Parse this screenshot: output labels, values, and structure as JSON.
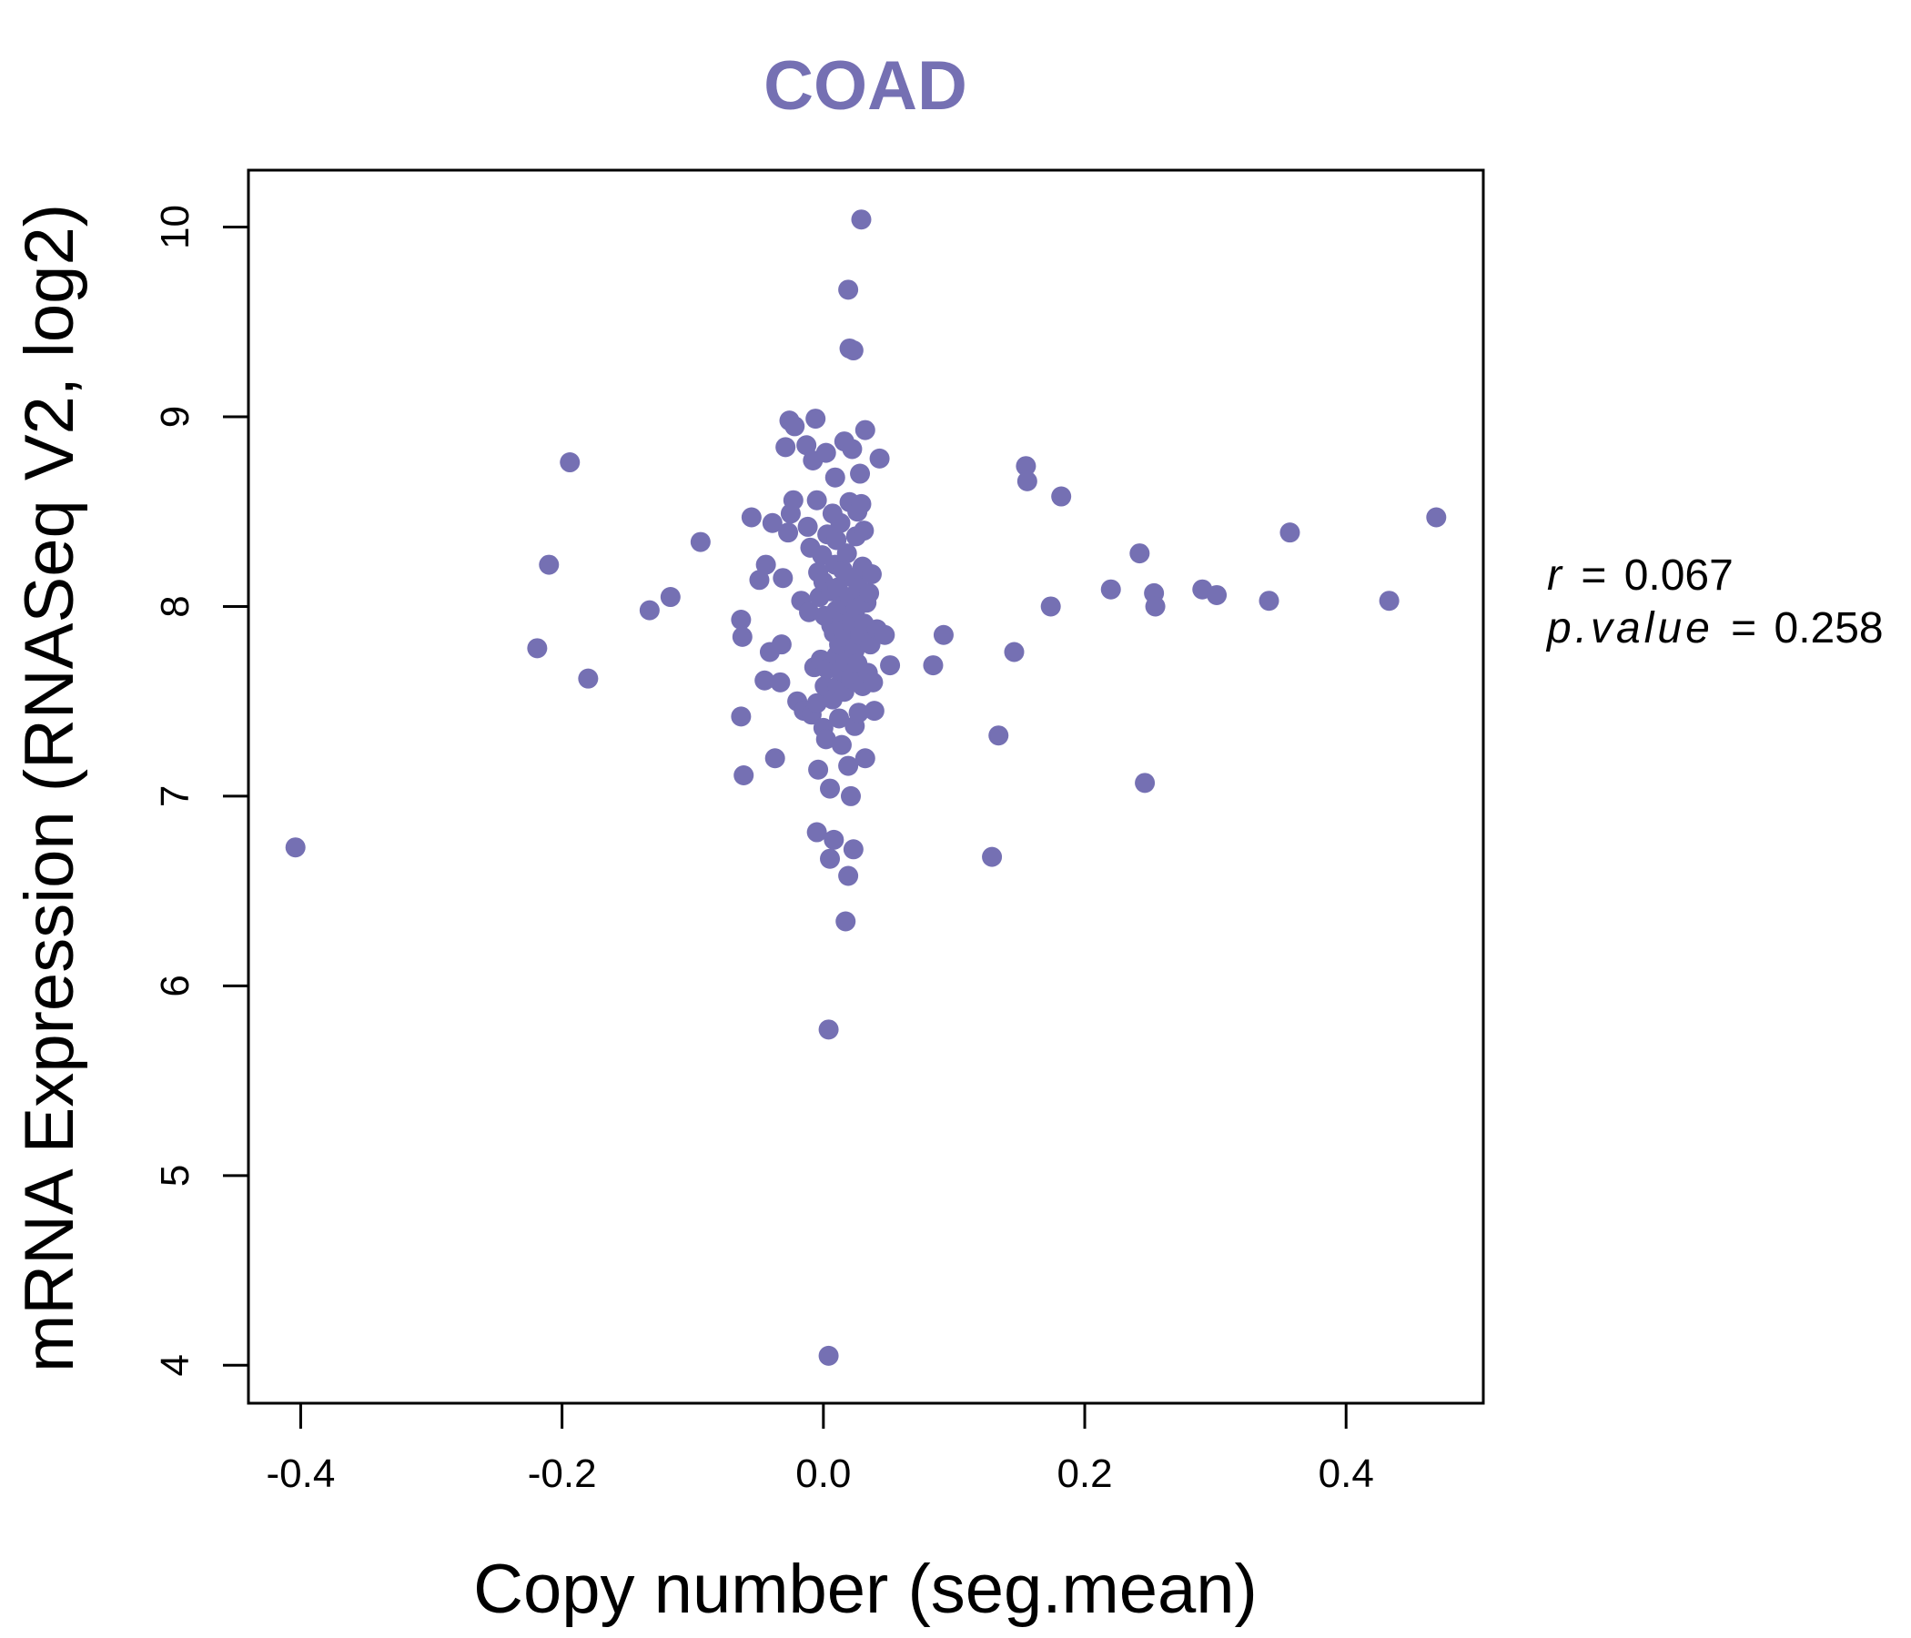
{
  "chart_data": {
    "type": "scatter",
    "title": "COAD",
    "xlabel": "Copy number (seg.mean)",
    "ylabel": "mRNA Expression (RNASeq V2, log2)",
    "xlim": [
      -0.44,
      0.505
    ],
    "ylim": [
      3.8,
      10.3
    ],
    "x_ticks": [
      -0.4,
      -0.2,
      0.0,
      0.2,
      0.4
    ],
    "x_tick_labels": [
      "-0.4",
      "-0.2",
      "0.0",
      "0.2",
      "0.4"
    ],
    "y_ticks": [
      4,
      5,
      6,
      7,
      8,
      9,
      10
    ],
    "y_tick_labels": [
      "4",
      "5",
      "6",
      "7",
      "8",
      "9",
      "10"
    ],
    "point_color": "#7570b3",
    "grid": false,
    "annotations": {
      "r_label": "r",
      "r_value": "0.067",
      "p_label": "p.value",
      "p_value": "0.258",
      "equals": "="
    },
    "points": [
      [
        -0.404,
        6.73
      ],
      [
        -0.219,
        7.78
      ],
      [
        -0.21,
        8.22
      ],
      [
        -0.194,
        8.76
      ],
      [
        -0.18,
        7.62
      ],
      [
        -0.133,
        7.98
      ],
      [
        -0.117,
        8.05
      ],
      [
        -0.094,
        8.34
      ],
      [
        -0.063,
        7.93
      ],
      [
        -0.062,
        7.84
      ],
      [
        -0.063,
        7.42
      ],
      [
        -0.061,
        7.11
      ],
      [
        -0.055,
        8.47
      ],
      [
        -0.049,
        8.14
      ],
      [
        -0.045,
        7.61
      ],
      [
        -0.044,
        8.22
      ],
      [
        -0.041,
        7.76
      ],
      [
        -0.039,
        8.44
      ],
      [
        -0.037,
        7.2
      ],
      [
        -0.033,
        7.6
      ],
      [
        -0.032,
        7.8
      ],
      [
        -0.031,
        8.15
      ],
      [
        -0.029,
        8.84
      ],
      [
        -0.027,
        8.39
      ],
      [
        -0.026,
        8.98
      ],
      [
        -0.025,
        8.49
      ],
      [
        -0.023,
        8.56
      ],
      [
        -0.022,
        8.95
      ],
      [
        -0.02,
        7.5
      ],
      [
        -0.017,
        8.03
      ],
      [
        -0.015,
        7.45
      ],
      [
        -0.013,
        8.85
      ],
      [
        -0.012,
        8.42
      ],
      [
        -0.011,
        7.97
      ],
      [
        -0.01,
        8.31
      ],
      [
        -0.009,
        7.43
      ],
      [
        -0.008,
        8.77
      ],
      [
        -0.007,
        7.68
      ],
      [
        -0.006,
        8.99
      ],
      [
        -0.005,
        8.56
      ],
      [
        -0.005,
        7.49
      ],
      [
        -0.005,
        6.81
      ],
      [
        -0.004,
        8.18
      ],
      [
        -0.004,
        7.14
      ],
      [
        -0.003,
        8.05
      ],
      [
        -0.002,
        7.72
      ],
      [
        -0.001,
        8.27
      ],
      [
        0.0,
        7.36
      ],
      [
        0.0,
        8.13
      ],
      [
        0.001,
        7.58
      ],
      [
        0.001,
        7.95
      ],
      [
        0.002,
        8.81
      ],
      [
        0.002,
        7.3
      ],
      [
        0.003,
        8.38
      ],
      [
        0.003,
        7.67
      ],
      [
        0.004,
        5.77
      ],
      [
        0.004,
        4.05
      ],
      [
        0.005,
        7.04
      ],
      [
        0.005,
        6.67
      ],
      [
        0.006,
        8.08
      ],
      [
        0.006,
        7.9
      ],
      [
        0.007,
        8.49
      ],
      [
        0.007,
        7.51
      ],
      [
        0.008,
        7.86
      ],
      [
        0.008,
        6.77
      ],
      [
        0.009,
        8.68
      ],
      [
        0.009,
        8.22
      ],
      [
        0.01,
        7.74
      ],
      [
        0.01,
        8.35
      ],
      [
        0.01,
        7.98
      ],
      [
        0.011,
        7.58
      ],
      [
        0.011,
        8.1
      ],
      [
        0.012,
        7.8
      ],
      [
        0.012,
        7.41
      ],
      [
        0.013,
        8.44
      ],
      [
        0.013,
        7.66
      ],
      [
        0.014,
        7.93
      ],
      [
        0.014,
        7.27
      ],
      [
        0.015,
        8.19
      ],
      [
        0.015,
        7.87
      ],
      [
        0.016,
        8.87
      ],
      [
        0.016,
        8.01
      ],
      [
        0.016,
        7.55
      ],
      [
        0.017,
        7.71
      ],
      [
        0.017,
        6.34
      ],
      [
        0.018,
        8.28
      ],
      [
        0.018,
        7.83
      ],
      [
        0.019,
        9.67
      ],
      [
        0.019,
        7.16
      ],
      [
        0.019,
        6.58
      ],
      [
        0.02,
        9.36
      ],
      [
        0.02,
        8.55
      ],
      [
        0.02,
        8.05
      ],
      [
        0.021,
        7.62
      ],
      [
        0.021,
        7.0
      ],
      [
        0.022,
        8.83
      ],
      [
        0.022,
        7.92
      ],
      [
        0.023,
        9.35
      ],
      [
        0.023,
        8.15
      ],
      [
        0.023,
        6.72
      ],
      [
        0.024,
        7.77
      ],
      [
        0.024,
        7.37
      ],
      [
        0.025,
        8.37
      ],
      [
        0.025,
        7.99
      ],
      [
        0.026,
        8.5
      ],
      [
        0.026,
        7.7
      ],
      [
        0.027,
        8.1
      ],
      [
        0.027,
        7.44
      ],
      [
        0.028,
        8.7
      ],
      [
        0.028,
        7.85
      ],
      [
        0.029,
        10.04
      ],
      [
        0.029,
        8.54
      ],
      [
        0.03,
        8.21
      ],
      [
        0.03,
        7.58
      ],
      [
        0.031,
        8.4
      ],
      [
        0.031,
        7.91
      ],
      [
        0.032,
        8.93
      ],
      [
        0.032,
        7.2
      ],
      [
        0.033,
        8.02
      ],
      [
        0.034,
        7.65
      ],
      [
        0.035,
        8.07
      ],
      [
        0.036,
        7.8
      ],
      [
        0.037,
        8.17
      ],
      [
        0.038,
        7.6
      ],
      [
        0.039,
        7.45
      ],
      [
        0.041,
        7.88
      ],
      [
        0.043,
        8.78
      ],
      [
        0.047,
        7.85
      ],
      [
        0.051,
        7.69
      ],
      [
        0.084,
        7.69
      ],
      [
        0.092,
        7.85
      ],
      [
        0.129,
        6.68
      ],
      [
        0.134,
        7.32
      ],
      [
        0.146,
        7.76
      ],
      [
        0.155,
        8.74
      ],
      [
        0.156,
        8.66
      ],
      [
        0.174,
        8.0
      ],
      [
        0.182,
        8.58
      ],
      [
        0.22,
        8.09
      ],
      [
        0.242,
        8.28
      ],
      [
        0.246,
        7.07
      ],
      [
        0.253,
        8.07
      ],
      [
        0.254,
        8.0
      ],
      [
        0.29,
        8.09
      ],
      [
        0.301,
        8.06
      ],
      [
        0.341,
        8.03
      ],
      [
        0.357,
        8.39
      ],
      [
        0.433,
        8.03
      ],
      [
        0.469,
        8.47
      ]
    ]
  }
}
